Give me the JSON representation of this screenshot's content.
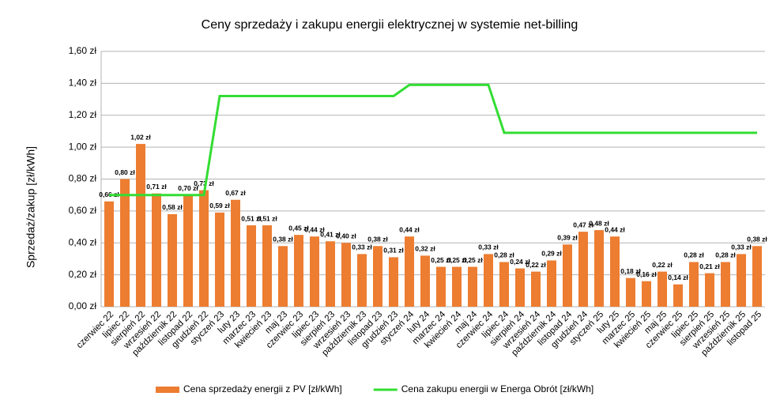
{
  "chart_data": {
    "type": "bar",
    "title": "Ceny sprzedaży i zakupu energii elektrycznej w systemie net-billing",
    "y_label": "Sprzedaż/zakup [zł/kWh]",
    "categories": [
      "czerwiec 22",
      "lipiec 22",
      "sierpień 22",
      "wrzesień 22",
      "październik 22",
      "listopad 22",
      "grudzień 22",
      "styczeń 23",
      "luty 23",
      "marzec 23",
      "kwiecień 23",
      "maj 23",
      "czerwiec 23",
      "lipiec 23",
      "sierpień 23",
      "wrzesień 23",
      "październik 23",
      "listopad 23",
      "grudzień 23",
      "styczeń 24",
      "luty 24",
      "marzec 24",
      "kwiecień 24",
      "maj 24",
      "czerwiec 24",
      "lipiec 24",
      "sierpień 24",
      "wrzesień 24",
      "październik 24",
      "listopad 24",
      "grudzień 24",
      "styczeń 25",
      "luty 25",
      "marzec 25",
      "kwiecień 25",
      "maj 25",
      "czerwiec 25",
      "lipiec 25",
      "sierpień 25",
      "wrzesień 25",
      "październik 25",
      "listopad 25"
    ],
    "series": [
      {
        "name": "Cena sprzedaży energii z PV [zł/kWh]",
        "type": "bar",
        "color": "#ed7d31",
        "values": [
          0.66,
          0.8,
          1.02,
          0.71,
          0.58,
          0.7,
          0.73,
          0.59,
          0.67,
          0.51,
          0.51,
          0.38,
          0.45,
          0.44,
          0.41,
          0.4,
          0.33,
          0.38,
          0.31,
          0.44,
          0.32,
          0.25,
          0.25,
          0.25,
          0.33,
          0.28,
          0.24,
          0.22,
          0.29,
          0.39,
          0.47,
          0.48,
          0.44,
          0.18,
          0.16,
          0.22,
          0.14,
          0.28,
          0.21,
          0.28,
          0.33,
          0.38
        ],
        "value_labels": [
          "0,66 zł",
          "0,80 zł",
          "1,02 zł",
          "0,71 zł",
          "0,58 zł",
          "0,70 zł",
          "0,73 zł",
          "0,59 zł",
          "0,67 zł",
          "0,51 zł",
          "0,51 zł",
          "0,38 zł",
          "0,45 zł",
          "0,44 zł",
          "0,41 zł",
          "0,40 zł",
          "0,33 zł",
          "0,38 zł",
          "0,31 zł",
          "0,44 zł",
          "0,32 zł",
          "0,25 zł",
          "0,25 zł",
          "0,25 zł",
          "0,33 zł",
          "0,28 zł",
          "0,24 zł",
          "0,22 zł",
          "0,29 zł",
          "0,39 zł",
          "0,47 zł",
          "0,48 zł",
          "0,44 zł",
          "0,18 zł",
          "0,16 zł",
          "0,22 zł",
          "0,14 zł",
          "0,28 zł",
          "0,21 zł",
          "0,28 zł",
          "0,33 zł",
          "0,38 zł"
        ]
      },
      {
        "name": "Cena zakupu energii w Energa Obrót [zł/kWh]",
        "type": "line",
        "color": "#33dd33",
        "values": [
          0.7,
          0.7,
          0.7,
          0.7,
          0.7,
          0.7,
          0.7,
          1.32,
          1.32,
          1.32,
          1.32,
          1.32,
          1.32,
          1.32,
          1.32,
          1.32,
          1.32,
          1.32,
          1.32,
          1.39,
          1.39,
          1.39,
          1.39,
          1.39,
          1.39,
          1.09,
          1.09,
          1.09,
          1.09,
          1.09,
          1.09,
          1.09,
          1.09,
          1.09,
          1.09,
          1.09,
          1.09,
          1.09,
          1.09,
          1.09,
          1.09,
          1.09
        ]
      }
    ],
    "ylim": [
      0,
      1.6
    ],
    "yticks": [
      {
        "value": 0,
        "label": "0,00 zł"
      },
      {
        "value": 0.2,
        "label": "0,20 zł"
      },
      {
        "value": 0.4,
        "label": "0,40 zł"
      },
      {
        "value": 0.6,
        "label": "0,60 zł"
      },
      {
        "value": 0.8,
        "label": "0,80 zł"
      },
      {
        "value": 1.0,
        "label": "1,00 zł"
      },
      {
        "value": 1.2,
        "label": "1,20 zł"
      },
      {
        "value": 1.4,
        "label": "1,40 zł"
      },
      {
        "value": 1.6,
        "label": "1,60 zł"
      }
    ],
    "grid": true,
    "legend": "bottom"
  }
}
